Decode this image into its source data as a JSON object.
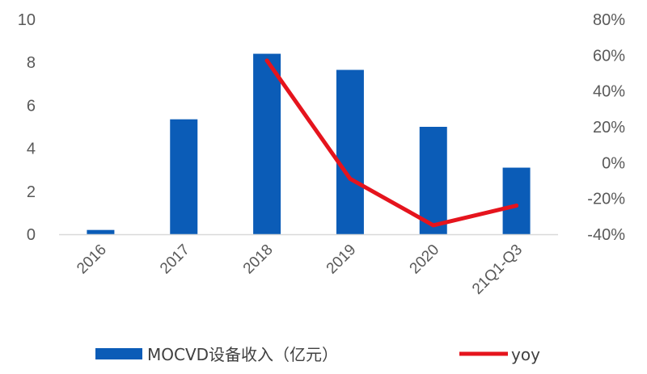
{
  "chart_data": {
    "type": "bar",
    "categories": [
      "2016",
      "2017",
      "2018",
      "2019",
      "2020",
      "21Q1-Q3"
    ],
    "series": [
      {
        "name": "MOCVD设备收入（亿元）",
        "type": "bar",
        "axis": "left",
        "color": "#0B5CB7",
        "values": [
          0.2,
          5.35,
          8.4,
          7.65,
          5.0,
          3.1
        ]
      },
      {
        "name": "yoy",
        "type": "line",
        "axis": "right",
        "color": "#E5141D",
        "values": [
          null,
          null,
          0.57,
          -0.09,
          -0.35,
          -0.24
        ]
      }
    ],
    "ylim": [
      0,
      10
    ],
    "yticks": [
      0,
      2,
      4,
      6,
      8,
      10
    ],
    "y2lim": [
      -0.4,
      0.8
    ],
    "y2ticks": [
      "-40%",
      "-20%",
      "0%",
      "20%",
      "40%",
      "60%",
      "80%"
    ],
    "xlabel": "",
    "ylabel": "",
    "grid": false,
    "legend_position": "bottom"
  }
}
